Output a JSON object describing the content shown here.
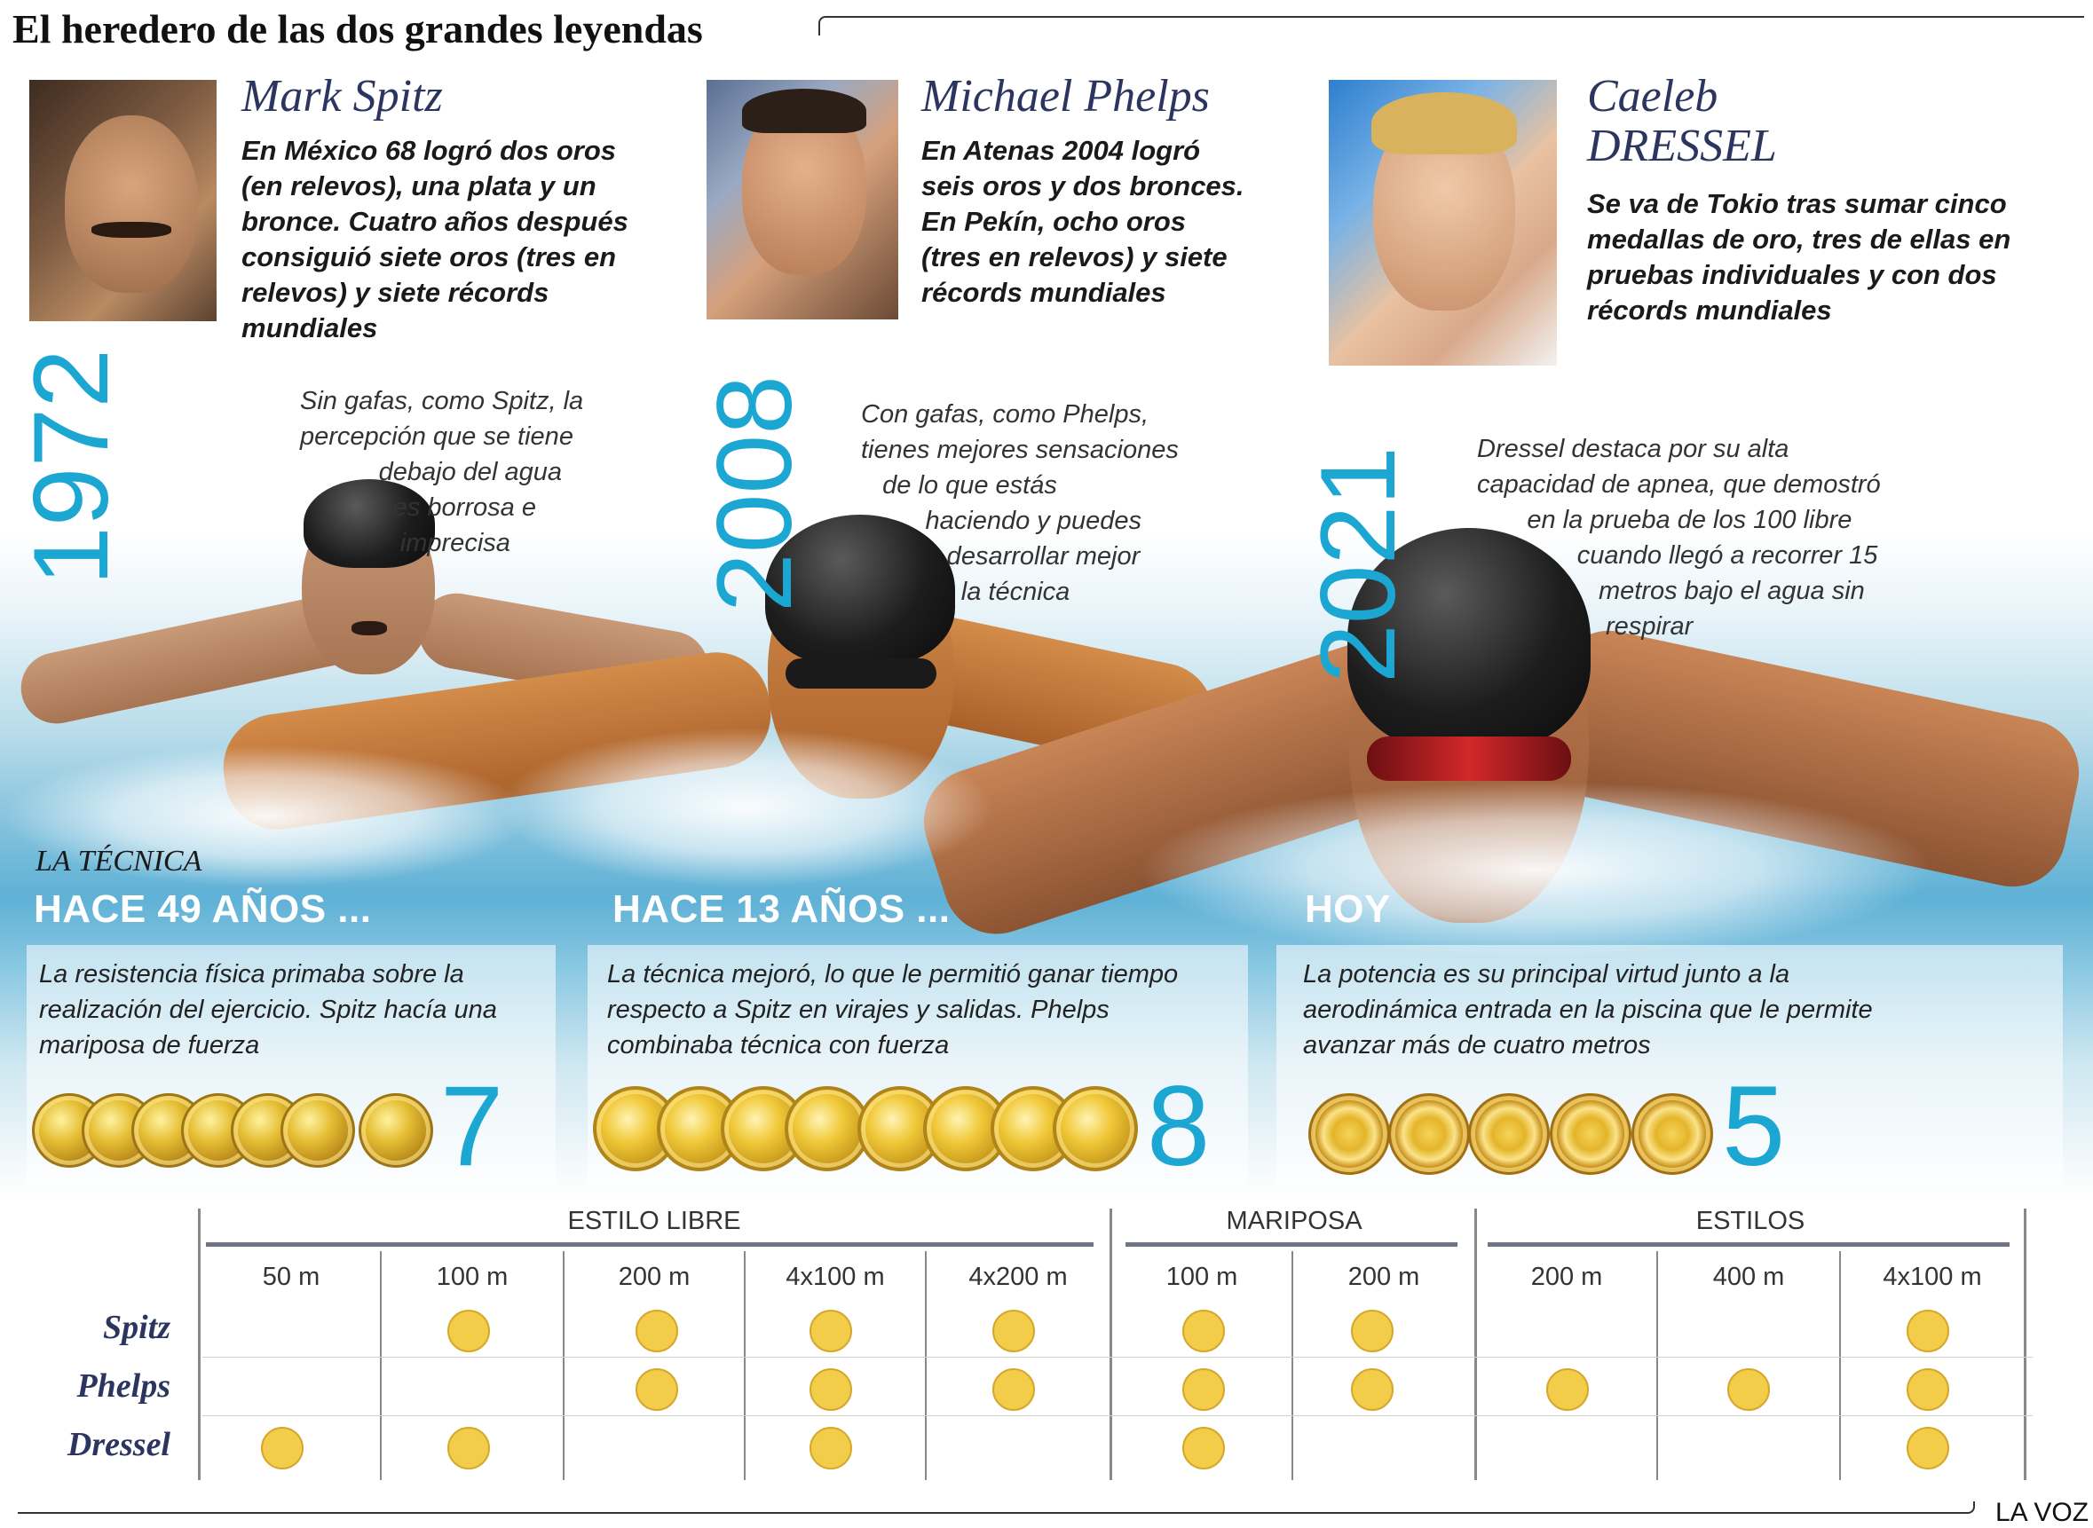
{
  "title": "El heredero de las dos grandes leyendas",
  "athletes": [
    {
      "name": "Mark Spitz",
      "description": "En México 68 logró dos oros (en relevos), una plata y un bronce. Cuatro años después consiguió siete oros (tres en relevos) y siete récords mundiales",
      "year": "1972",
      "quote": "Sin gafas, como Spitz, la\npercepción que se tiene\n           debajo del agua\n             es borrosa e\n              imprecisa"
    },
    {
      "name": "Michael Phelps",
      "description": "En Atenas 2004 logró seis oros y dos bronces. En Pekín, ocho oros (tres en relevos) y siete récords mundiales",
      "year": "2008",
      "quote": "Con gafas, como Phelps,\ntienes mejores sensaciones\n   de lo que estás\n         haciendo y puedes\n            desarrollar mejor\n              la técnica"
    },
    {
      "name_line1": "Caeleb",
      "name_line2": "DRESSEL",
      "description": "Se va de Tokio tras sumar cinco medallas de oro, tres de ellas en pruebas individuales y con dos récords mundiales",
      "year": "2021",
      "quote": "Dressel destaca por su alta\ncapacidad de apnea, que demostró\n       en la prueba de los 100 libre\n              cuando llegó a recorrer 15\n                 metros bajo el agua sin\n                  respirar"
    }
  ],
  "technique": {
    "label": "LA TÉCNICA",
    "eras": [
      {
        "heading": "HACE 49 AÑOS ...",
        "text": "La resistencia física primaba sobre la realización del ejercicio. Spitz hacía una mariposa de fuerza",
        "medal_count": "7"
      },
      {
        "heading": "HACE 13 AÑOS ...",
        "text": "La técnica mejoró, lo que le permitió ganar tiempo respecto a Spitz en virajes y salidas. Phelps combinaba técnica con fuerza",
        "medal_count": "8"
      },
      {
        "heading": "HOY",
        "text": "La potencia es su principal virtud junto a la aerodinámica entrada en la piscina que le permite avanzar más de cuatro metros",
        "medal_count": "5"
      }
    ]
  },
  "table": {
    "groups": [
      "ESTILO LIBRE",
      "MARIPOSA",
      "ESTILOS"
    ],
    "columns": [
      "50 m",
      "100 m",
      "200 m",
      "4x100 m",
      "4x200 m",
      "100 m",
      "200 m",
      "200 m",
      "400 m",
      "4x100 m"
    ],
    "rows": [
      {
        "label": "Spitz",
        "golds": [
          false,
          true,
          true,
          true,
          true,
          true,
          true,
          false,
          false,
          true
        ]
      },
      {
        "label": "Phelps",
        "golds": [
          false,
          false,
          true,
          true,
          true,
          true,
          true,
          true,
          true,
          true
        ]
      },
      {
        "label": "Dressel",
        "golds": [
          true,
          true,
          false,
          true,
          false,
          true,
          false,
          false,
          false,
          true
        ]
      }
    ]
  },
  "credit": "LA VOZ",
  "colors": {
    "accent": "#1ca6d2",
    "name": "#2c3560",
    "gold": "#f3cc4a"
  }
}
